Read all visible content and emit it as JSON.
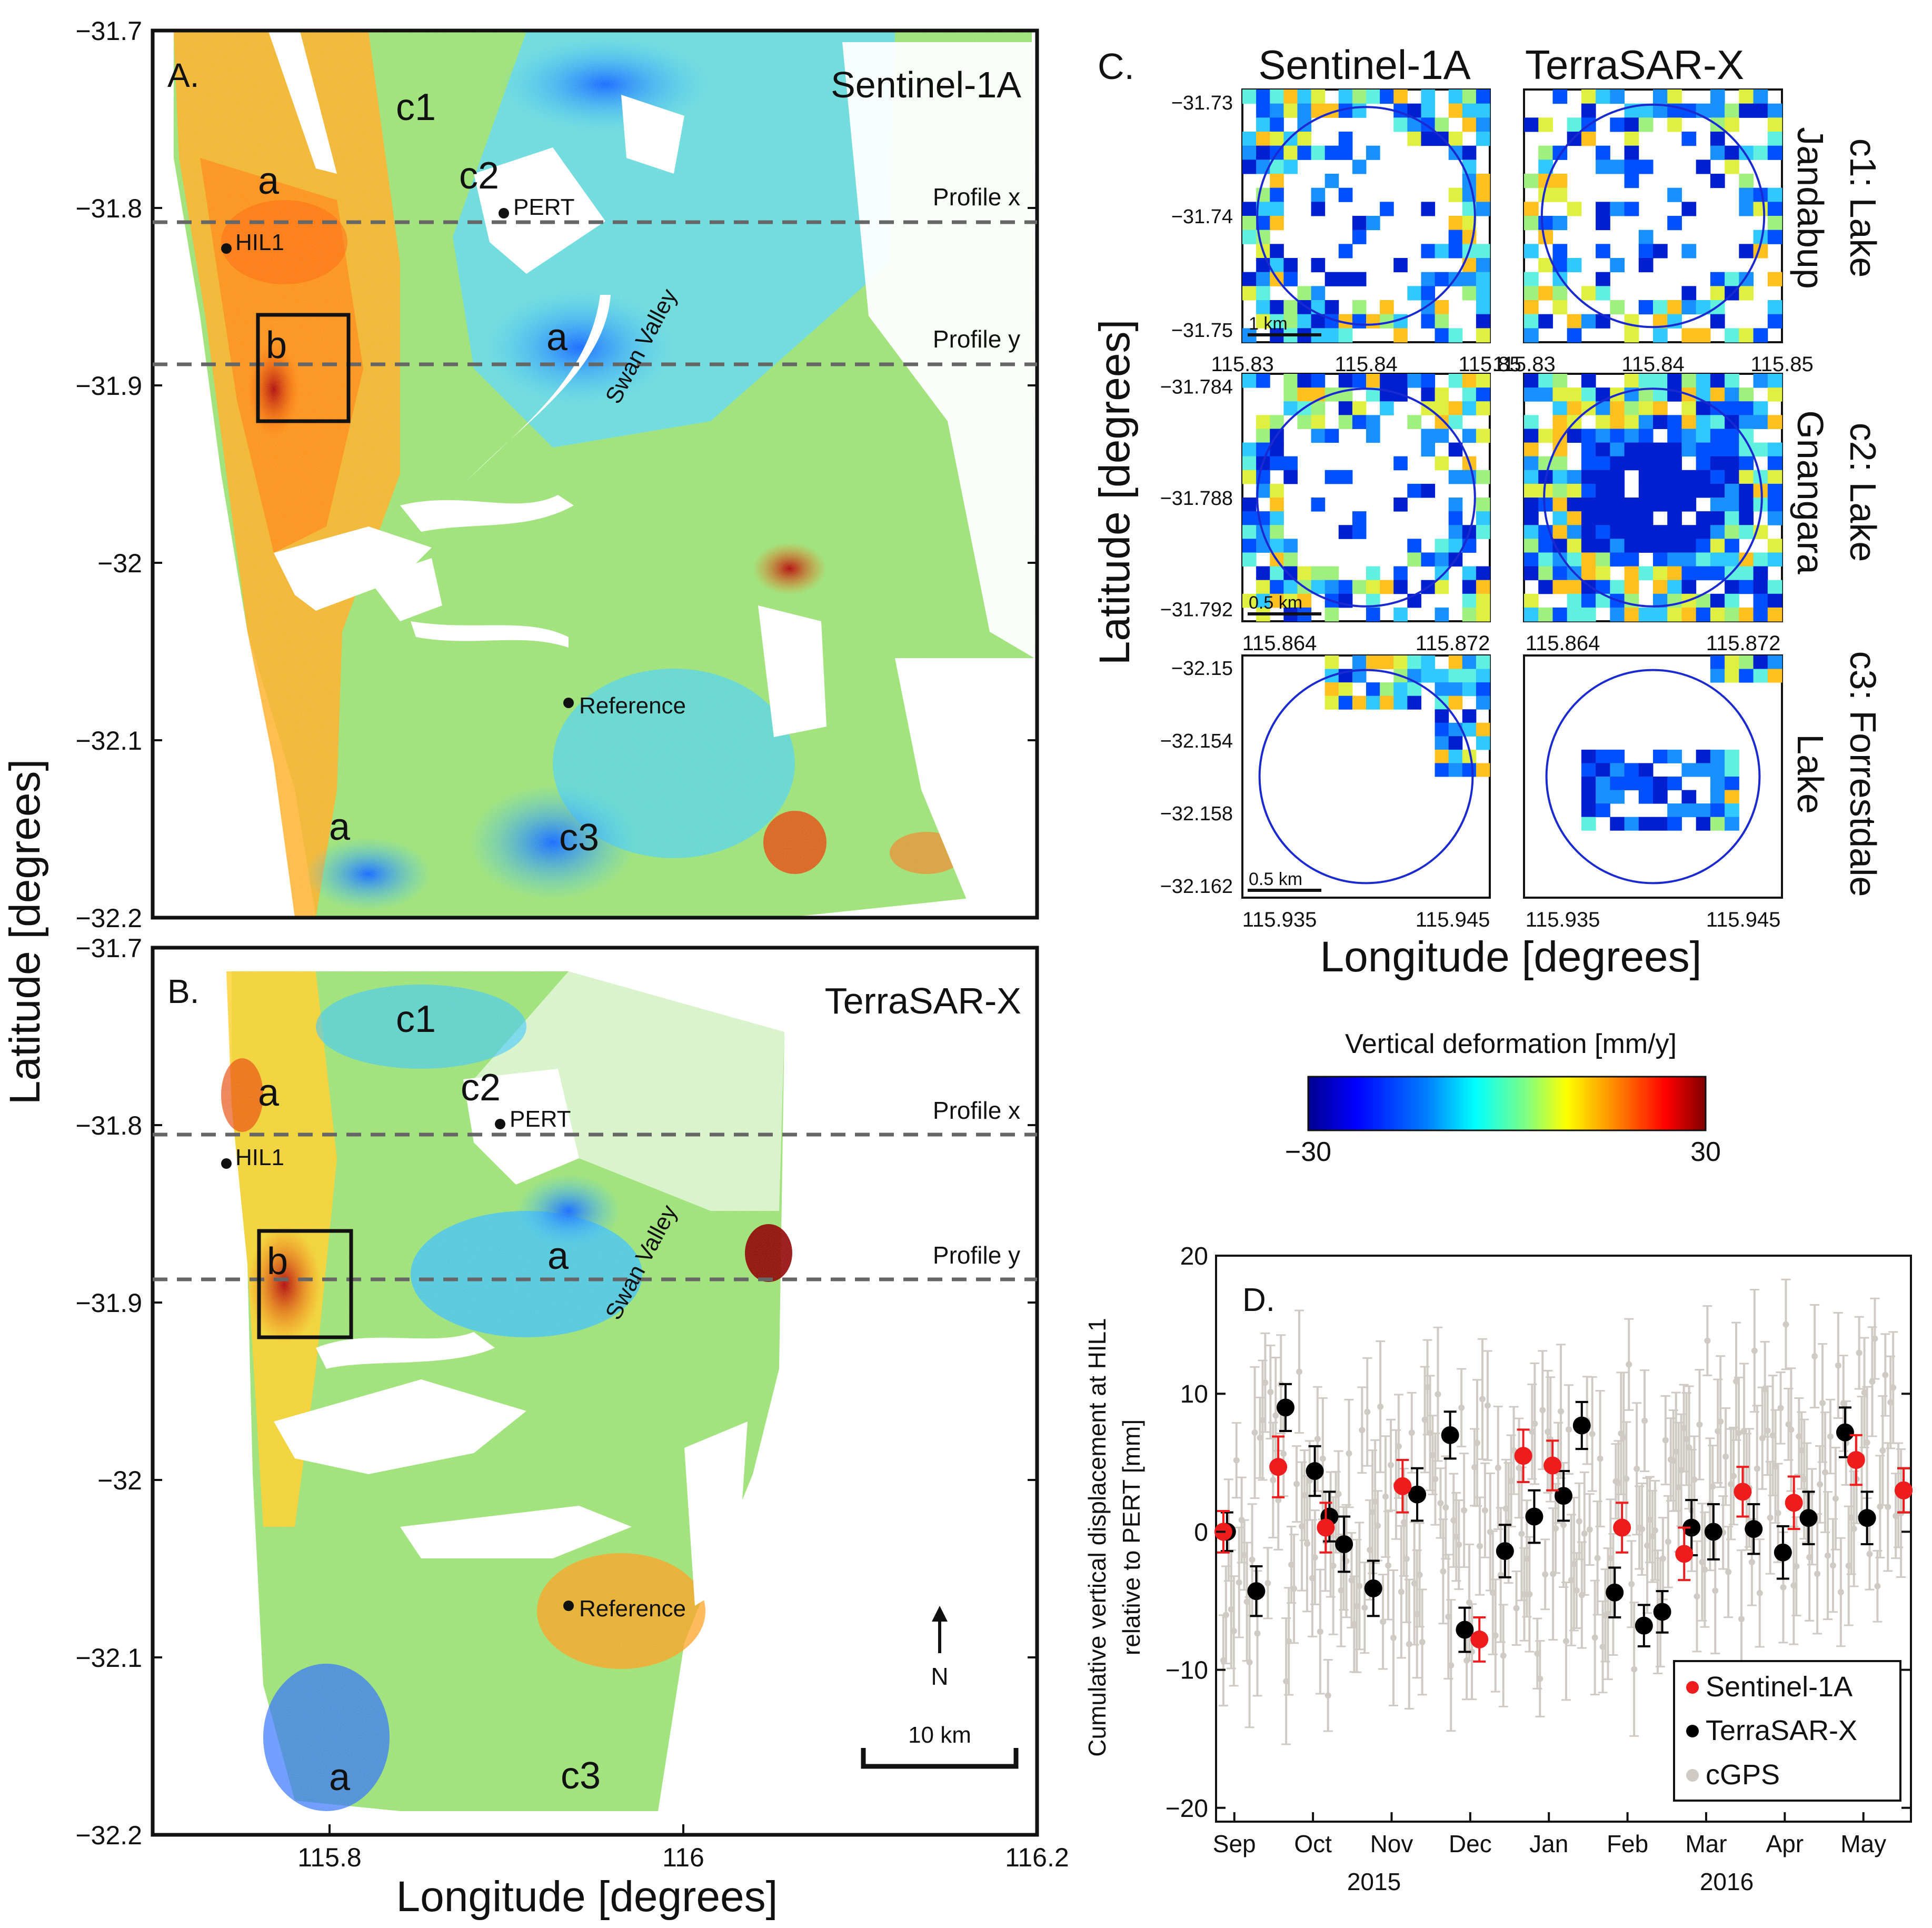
{
  "figure": {
    "ylabel": "Latitude [degrees]",
    "xlabel": "Longitude [degrees]"
  },
  "panel_a": {
    "letter": "A.",
    "title": "Sentinel-1A",
    "y_ticks": [
      "-31.7",
      "-31.8",
      "-31.9",
      "-32",
      "-32.1",
      "-32.2"
    ],
    "ylim": [
      -32.2,
      -31.7
    ],
    "xlim": [
      115.7,
      116.2
    ]
  },
  "panel_b": {
    "letter": "B.",
    "title": "TerraSAR-X",
    "y_ticks": [
      "-31.7",
      "-31.8",
      "-31.9",
      "-32",
      "-32.1",
      "-32.2"
    ],
    "x_ticks": [
      "115.8",
      "116",
      "116.2"
    ],
    "north_label": "N",
    "scale_label": "10 km"
  },
  "map_labels": {
    "profile_x": "Profile x",
    "profile_y": "Profile y",
    "hil1": "HIL1",
    "pert": "PERT",
    "reference": "Reference",
    "swan_valley": "Swan Valley",
    "label_a": "a",
    "label_b": "b",
    "c1": "c1",
    "c2": "c2",
    "c3": "c3"
  },
  "panel_c": {
    "letter": "C.",
    "col1": "Sentinel-1A",
    "col2": "TerraSAR-X",
    "ylabel": "Latitude [degrees]",
    "xlabel": "Longitude [degrees]",
    "row1": {
      "side": "c1: Lake Jandabup",
      "side_top": "c1: Lake",
      "side_bottom": "Jandabup",
      "y_ticks": [
        "-31.73",
        "-31.74",
        "-31.75"
      ],
      "x_ticks": [
        "115.83",
        "115.84",
        "115.85"
      ],
      "scale": "1 km"
    },
    "row2": {
      "side_top": "c2: Lake",
      "side_bottom": "Gnangara",
      "y_ticks": [
        "-31.784",
        "-31.788",
        "-31.792"
      ],
      "x_ticks": [
        "115.864",
        "115.872"
      ],
      "scale": "0.5 km"
    },
    "row3": {
      "side_top": "c3: Forrestdale",
      "side_bottom": "Lake",
      "y_ticks": [
        "-32.15",
        "-32.154",
        "-32.158",
        "-32.162"
      ],
      "x_ticks": [
        "115.935",
        "115.945"
      ],
      "scale": "0.5 km"
    }
  },
  "colorbar": {
    "title": "Vertical deformation [mm/y]",
    "min_label": "−30",
    "max_label": "30",
    "colors": [
      "#00008f",
      "#0000ff",
      "#0080ff",
      "#00ffff",
      "#80ff80",
      "#ffff00",
      "#ff8000",
      "#ff0000",
      "#800000"
    ]
  },
  "chart_data": {
    "type": "scatter",
    "panel_letter": "D.",
    "title": "",
    "ylabel_line1": "Cumulative vertical  displacement at HIL1",
    "ylabel_line2": "relative to PERT  [mm]",
    "ylim": [
      -21,
      20
    ],
    "y_ticks": [
      20,
      10,
      0,
      -10,
      -20
    ],
    "x_ticks": [
      "Sep",
      "Oct",
      "Nov",
      "Dec",
      "Jan",
      "Feb",
      "Mar",
      "Apr",
      "May"
    ],
    "year_labels": [
      "2015",
      "2016"
    ],
    "legend": [
      "Sentinel-1A",
      "TerraSAR-X",
      "cGPS"
    ],
    "series": [
      {
        "name": "Sentinel-1A",
        "color": "#ee1c1c",
        "x": [
          0,
          1.5,
          2.8,
          4.9,
          7.0,
          8.2,
          9.0,
          10.9,
          12.6,
          14.2,
          15.6,
          17.3,
          18.6
        ],
        "y": [
          0,
          4.7,
          0.3,
          3.3,
          -7.8,
          5.5,
          4.8,
          0.3,
          -1.6,
          2.9,
          2.1,
          5.2,
          3.0
        ],
        "err": [
          1.5,
          2.2,
          1.8,
          1.9,
          1.6,
          1.9,
          1.8,
          1.8,
          1.9,
          1.8,
          1.9,
          1.8,
          1.6
        ]
      },
      {
        "name": "TerraSAR-X",
        "color": "#000000",
        "x": [
          0.1,
          0.9,
          1.7,
          2.5,
          2.9,
          3.3,
          4.1,
          5.3,
          6.2,
          6.6,
          7.7,
          8.5,
          9.3,
          9.8,
          10.7,
          11.5,
          12.0,
          12.8,
          13.4,
          14.5,
          15.3,
          16.0,
          17.0,
          17.6,
          18.6
        ],
        "y": [
          0,
          -4.3,
          9.0,
          4.4,
          1.1,
          -0.9,
          -4.1,
          2.7,
          7.0,
          -7.1,
          -1.4,
          1.1,
          2.6,
          7.7,
          -4.4,
          -6.8,
          -5.8,
          0.3,
          0.0,
          0.2,
          -1.5,
          1.0,
          7.2,
          1.0,
          3.0
        ],
        "err": [
          1.4,
          1.8,
          1.7,
          1.8,
          1.8,
          2.0,
          2.0,
          1.9,
          1.7,
          1.6,
          1.9,
          1.9,
          1.8,
          1.7,
          1.8,
          1.5,
          1.5,
          2.0,
          2.0,
          1.8,
          1.9,
          1.9,
          1.8,
          1.9,
          1.6
        ]
      }
    ],
    "cgps_note": "grey points with error bars, daily, roughly -15..15 mm"
  }
}
